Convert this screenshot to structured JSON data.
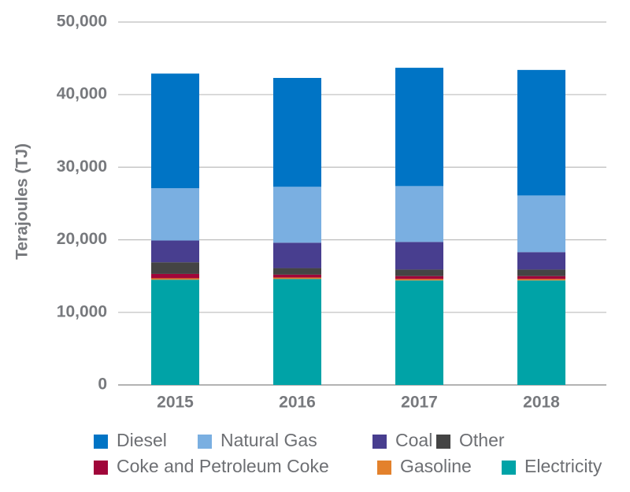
{
  "chart_data": {
    "type": "bar",
    "stacked": true,
    "title": "",
    "xlabel": "",
    "ylabel": "Terajoules (TJ)",
    "ylim": [
      0,
      50000
    ],
    "yticks": [
      0,
      10000,
      20000,
      30000,
      40000,
      50000
    ],
    "ytick_labels": [
      "0",
      "10,000",
      "20,000",
      "30,000",
      "40,000",
      "50,000"
    ],
    "grid": true,
    "legend_position": "bottom",
    "categories": [
      "2015",
      "2016",
      "2017",
      "2018"
    ],
    "series": [
      {
        "name": "Electricity",
        "color": "#00a3a7",
        "values": [
          14500,
          14600,
          14400,
          14400
        ]
      },
      {
        "name": "Gasoline",
        "color": "#e3812c",
        "values": [
          200,
          200,
          200,
          200
        ]
      },
      {
        "name": "Coke and Petroleum Coke",
        "color": "#a0063a",
        "values": [
          600,
          400,
          400,
          400
        ]
      },
      {
        "name": "Other",
        "color": "#444444",
        "values": [
          1600,
          900,
          900,
          900
        ]
      },
      {
        "name": "Coal",
        "color": "#483e8f",
        "values": [
          3000,
          3500,
          3800,
          2400
        ]
      },
      {
        "name": "Natural Gas",
        "color": "#7aafe1",
        "values": [
          7200,
          7700,
          7700,
          7800
        ]
      },
      {
        "name": "Diesel",
        "color": "#0074c5",
        "values": [
          15800,
          15000,
          16300,
          17300
        ]
      }
    ],
    "legend_rows": [
      [
        "Diesel",
        "Natural Gas",
        "Coal",
        "Other"
      ],
      [
        "Coke and Petroleum Coke",
        "Gasoline",
        "Electricity"
      ]
    ]
  }
}
